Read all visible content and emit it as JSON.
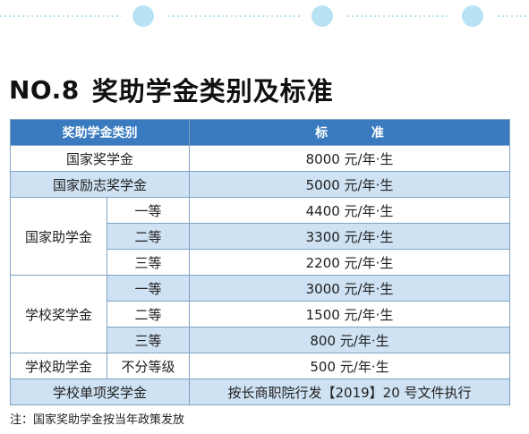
{
  "heading": {
    "number": "NO.8",
    "title": "奖助学金类别及标准"
  },
  "table": {
    "header_category": "奖助学金类别",
    "header_standard": "标    准",
    "rows": {
      "national_scholarship": {
        "name": "国家奖学金",
        "standard": "8000 元/年·生"
      },
      "national_encouragement": {
        "name": "国家励志奖学金",
        "standard": "5000 元/年·生"
      },
      "national_grant": {
        "name": "国家助学金",
        "levels": [
          {
            "level": "一等",
            "standard": "4400 元/年·生"
          },
          {
            "level": "二等",
            "standard": "3300 元/年·生"
          },
          {
            "level": "三等",
            "standard": "2200 元/年·生"
          }
        ]
      },
      "school_scholarship": {
        "name": "学校奖学金",
        "levels": [
          {
            "level": "一等",
            "standard": "3000 元/年·生"
          },
          {
            "level": "二等",
            "standard": "1500 元/年·生"
          },
          {
            "level": "三等",
            "standard": "800 元/年·生"
          }
        ]
      },
      "school_grant": {
        "name": "学校助学金",
        "level": "不分等级",
        "standard": "500 元/年·生"
      },
      "school_single": {
        "name": "学校单项奖学金",
        "standard": "按长商职院行发【2019】20 号文件执行"
      }
    }
  },
  "note": "注：国家奖助学金按当年政策发放",
  "colors": {
    "header_blue": "#3a7bbf",
    "row_light_blue": "#cfe2f3",
    "border": "#7fa3c4",
    "deco_dot": "#b9e3f5"
  }
}
